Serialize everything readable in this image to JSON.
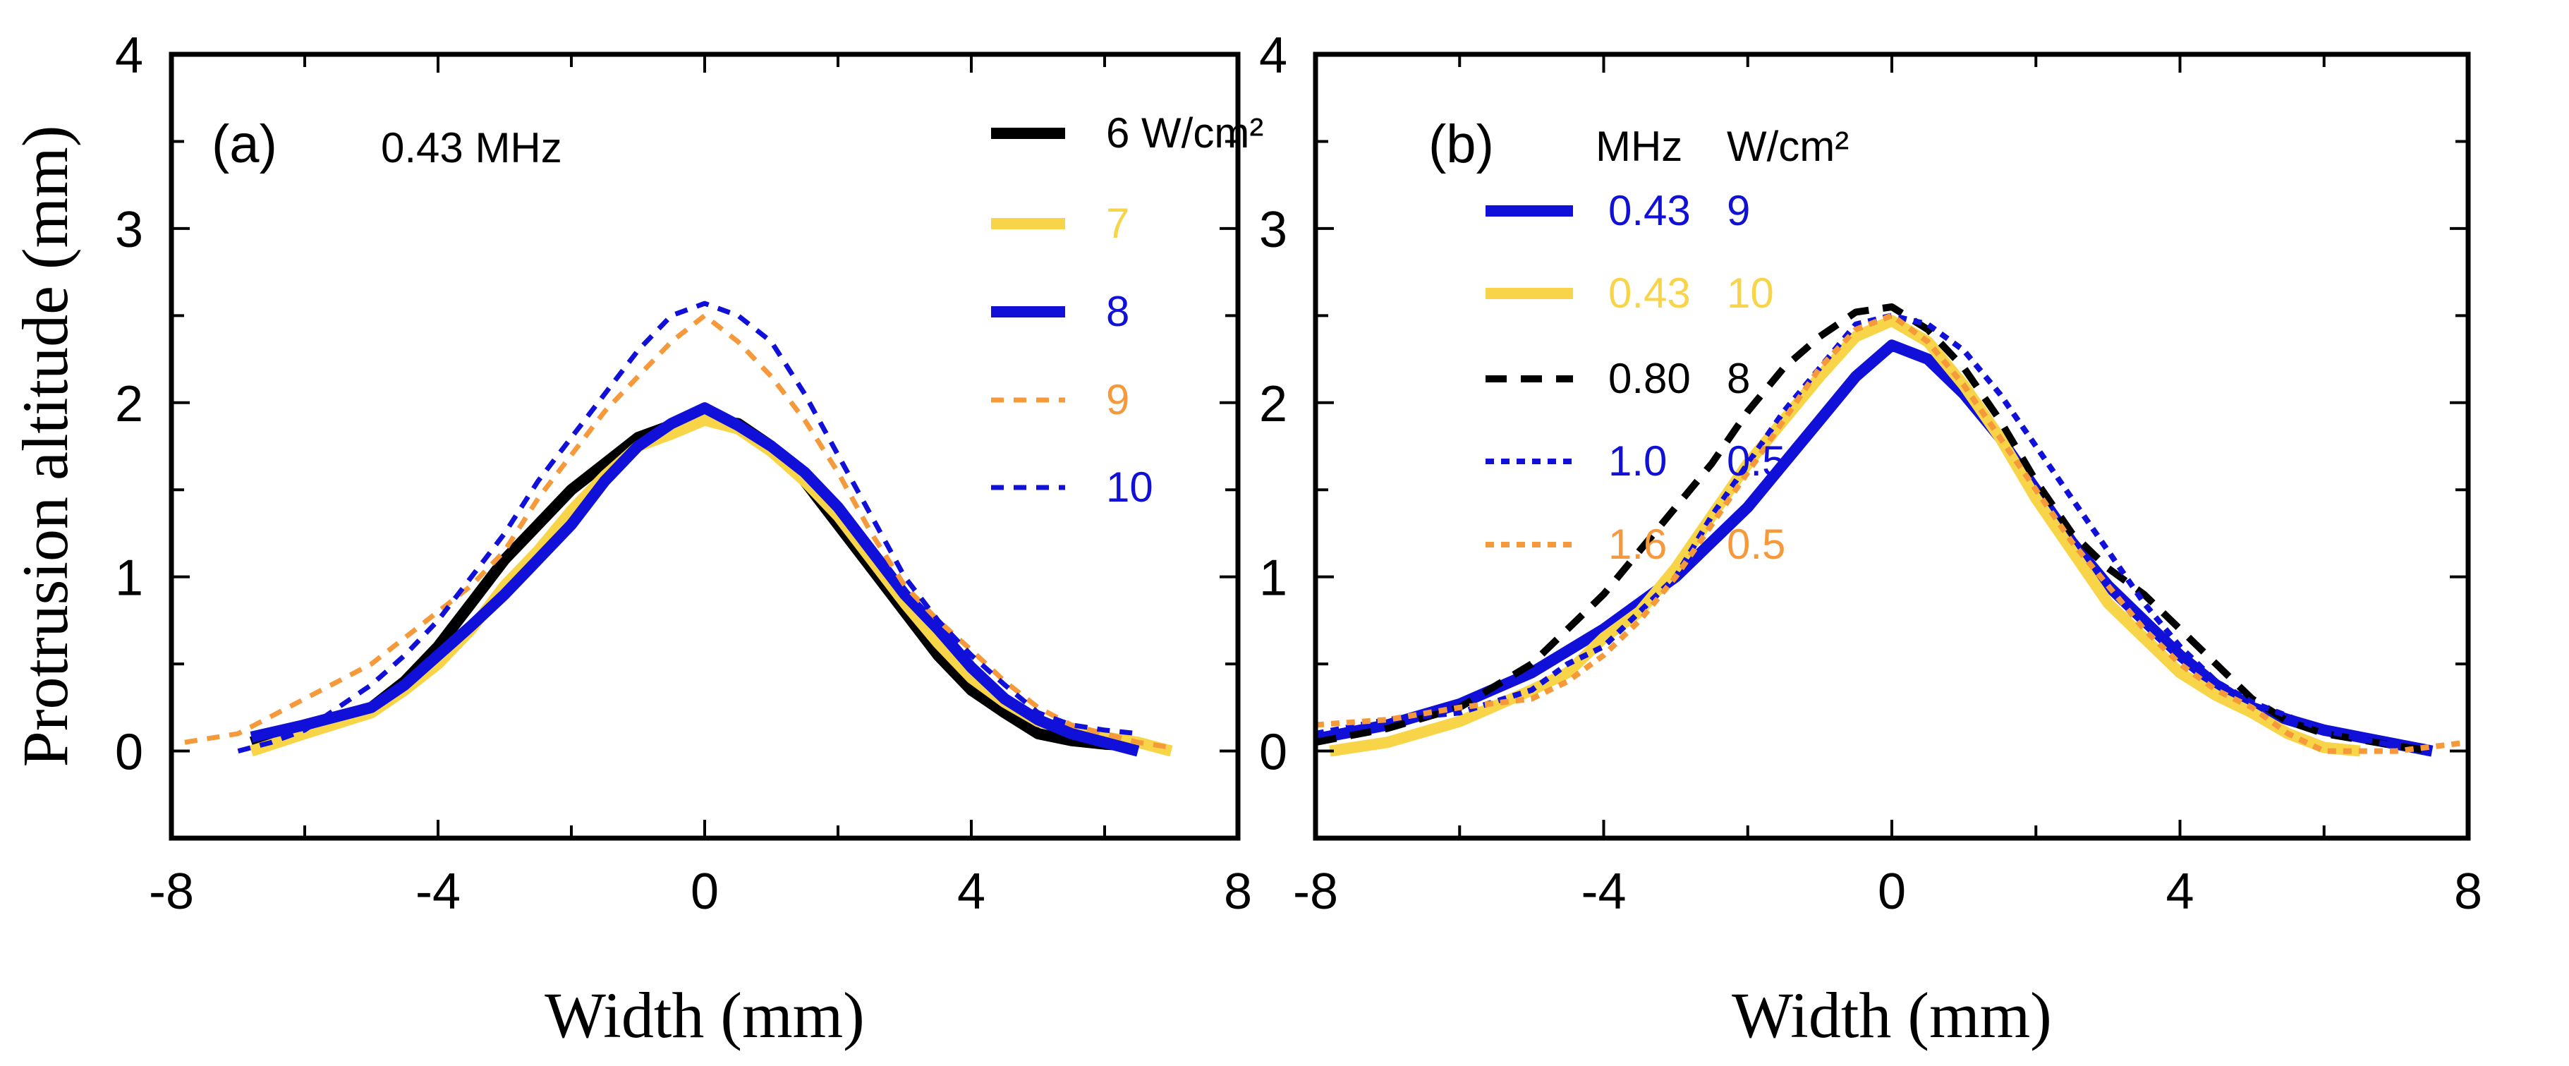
{
  "colors": {
    "black": "#000000",
    "yellow": "#f8d548",
    "blue": "#1010d8",
    "orange": "#f5993a"
  },
  "chart_data": [
    {
      "type": "line",
      "panel_label": "(a)",
      "annotation": "0.43 MHz",
      "xlabel": "Width  (mm)",
      "ylabel": "Protrusion altitude  (mm)",
      "xlim": [
        -8,
        8
      ],
      "ylim": [
        -0.5,
        4
      ],
      "xticks": [
        "-8",
        "-4",
        "0",
        "4",
        "8"
      ],
      "yticks": [
        "0",
        "1",
        "2",
        "3",
        "4"
      ],
      "grid": false,
      "legend_position": "top-right",
      "legend_header": [],
      "series": [
        {
          "name": "6 W/cm²",
          "labels": [
            "6 W/cm²"
          ],
          "color": "#000000",
          "style": "solid-thick",
          "x": [
            -6.8,
            -6,
            -5,
            -4.5,
            -4,
            -3.5,
            -3,
            -2.5,
            -2,
            -1.5,
            -1,
            -0.5,
            0,
            0.5,
            1,
            1.5,
            2,
            2.5,
            3,
            3.5,
            4,
            4.5,
            5,
            5.5,
            6,
            6.5
          ],
          "y": [
            0.05,
            0.15,
            0.25,
            0.4,
            0.6,
            0.85,
            1.1,
            1.3,
            1.5,
            1.65,
            1.8,
            1.87,
            1.9,
            1.88,
            1.75,
            1.55,
            1.3,
            1.05,
            0.8,
            0.55,
            0.35,
            0.22,
            0.1,
            0.06,
            0.04,
            0.03
          ]
        },
        {
          "name": "7",
          "labels": [
            "7"
          ],
          "color": "#f8d548",
          "style": "solid-thick",
          "x": [
            -6.8,
            -6,
            -5,
            -4.5,
            -4,
            -3.5,
            -3,
            -2.5,
            -2,
            -1.5,
            -1,
            -0.5,
            0,
            0.5,
            1,
            1.5,
            2,
            2.5,
            3,
            3.5,
            4,
            4.5,
            5,
            5.5,
            6,
            6.5,
            7
          ],
          "y": [
            0,
            0.1,
            0.22,
            0.35,
            0.5,
            0.7,
            0.95,
            1.15,
            1.38,
            1.58,
            1.75,
            1.82,
            1.9,
            1.85,
            1.72,
            1.55,
            1.35,
            1.1,
            0.85,
            0.62,
            0.42,
            0.28,
            0.17,
            0.12,
            0.08,
            0.05,
            0
          ]
        },
        {
          "name": "8",
          "labels": [
            "8"
          ],
          "color": "#1010d8",
          "style": "solid-thick",
          "x": [
            -6.8,
            -6,
            -5,
            -4.5,
            -4,
            -3.5,
            -3,
            -2.5,
            -2,
            -1.5,
            -1,
            -0.5,
            0,
            0.5,
            1,
            1.5,
            2,
            2.5,
            3,
            3.5,
            4,
            4.5,
            5,
            5.5,
            6,
            6.5
          ],
          "y": [
            0.08,
            0.15,
            0.25,
            0.38,
            0.55,
            0.72,
            0.9,
            1.1,
            1.3,
            1.55,
            1.75,
            1.88,
            1.97,
            1.87,
            1.75,
            1.6,
            1.4,
            1.15,
            0.9,
            0.7,
            0.48,
            0.3,
            0.18,
            0.1,
            0.05,
            0
          ]
        },
        {
          "name": "9",
          "labels": [
            "9"
          ],
          "color": "#f5993a",
          "style": "dashed-thin",
          "x": [
            -7.8,
            -7,
            -6.5,
            -6,
            -5.5,
            -5,
            -4.5,
            -4,
            -3.5,
            -3,
            -2.5,
            -2,
            -1.5,
            -1,
            -0.5,
            0,
            0.5,
            1,
            1.5,
            2,
            2.5,
            3,
            3.5,
            4,
            4.5,
            5,
            5.5,
            6,
            6.5,
            7
          ],
          "y": [
            0.05,
            0.1,
            0.2,
            0.3,
            0.4,
            0.5,
            0.65,
            0.8,
            0.95,
            1.15,
            1.45,
            1.7,
            1.95,
            2.15,
            2.35,
            2.5,
            2.35,
            2.15,
            1.9,
            1.6,
            1.25,
            0.95,
            0.75,
            0.58,
            0.4,
            0.25,
            0.15,
            0.1,
            0.05,
            0.02
          ]
        },
        {
          "name": "10",
          "labels": [
            "10"
          ],
          "color": "#1010d8",
          "style": "dashed-thin",
          "x": [
            -7,
            -6.5,
            -6,
            -5.5,
            -5,
            -4.5,
            -4,
            -3.5,
            -3,
            -2.5,
            -2,
            -1.5,
            -1,
            -0.5,
            0,
            0.5,
            1,
            1.5,
            2,
            2.5,
            3,
            3.5,
            4,
            4.5,
            5,
            5.5,
            6,
            6.5
          ],
          "y": [
            0,
            0.05,
            0.12,
            0.25,
            0.38,
            0.55,
            0.75,
            1,
            1.25,
            1.55,
            1.8,
            2.05,
            2.3,
            2.5,
            2.57,
            2.5,
            2.35,
            2.05,
            1.7,
            1.35,
            1,
            0.75,
            0.55,
            0.38,
            0.22,
            0.15,
            0.12,
            0.1
          ]
        }
      ]
    },
    {
      "type": "line",
      "panel_label": "(b)",
      "annotation": "",
      "xlabel": "Width  (mm)",
      "ylabel": "",
      "xlim": [
        -8,
        8
      ],
      "ylim": [
        -0.5,
        4
      ],
      "xticks": [
        "-8",
        "-4",
        "0",
        "4",
        "8"
      ],
      "yticks": [
        "0",
        "1",
        "2",
        "3",
        "4"
      ],
      "grid": false,
      "legend_position": "top-left",
      "legend_header": [
        "MHz",
        "W/cm²"
      ],
      "series": [
        {
          "labels": [
            "0.43",
            "9"
          ],
          "color": "#1010d8",
          "style": "solid-thick",
          "x": [
            -8,
            -7,
            -6,
            -5,
            -4,
            -3,
            -2.5,
            -2,
            -1.5,
            -1,
            -0.5,
            0,
            0.5,
            1,
            1.5,
            2,
            2.5,
            3,
            3.5,
            4,
            4.5,
            5,
            5.5,
            6,
            6.5,
            7,
            7.5
          ],
          "y": [
            0.07,
            0.15,
            0.27,
            0.45,
            0.7,
            1,
            1.2,
            1.4,
            1.65,
            1.9,
            2.15,
            2.33,
            2.25,
            2.05,
            1.8,
            1.5,
            1.2,
            0.95,
            0.75,
            0.55,
            0.38,
            0.25,
            0.18,
            0.12,
            0.08,
            0.04,
            0
          ]
        },
        {
          "labels": [
            "0.43",
            "10"
          ],
          "color": "#f8d548",
          "style": "solid-thick",
          "x": [
            -7.8,
            -7,
            -6,
            -5,
            -4.5,
            -4,
            -3.5,
            -3,
            -2.5,
            -2,
            -1.5,
            -1,
            -0.5,
            0,
            0.5,
            1,
            1.5,
            2,
            2.5,
            3,
            3.5,
            4,
            4.5,
            5,
            5.5,
            6,
            6.5
          ],
          "y": [
            0,
            0.05,
            0.17,
            0.35,
            0.45,
            0.65,
            0.8,
            1.05,
            1.35,
            1.65,
            1.9,
            2.15,
            2.38,
            2.47,
            2.35,
            2.1,
            1.8,
            1.45,
            1.15,
            0.85,
            0.65,
            0.45,
            0.32,
            0.22,
            0.1,
            0.02,
            0
          ]
        },
        {
          "labels": [
            "0.80",
            "8"
          ],
          "color": "#000000",
          "style": "dashed-medium",
          "x": [
            -8,
            -7,
            -6,
            -5,
            -4.5,
            -4,
            -3.5,
            -3,
            -2.5,
            -2,
            -1.5,
            -1,
            -0.5,
            0,
            0.5,
            1,
            1.5,
            2,
            2.5,
            3,
            3.5,
            4,
            4.5,
            5,
            5.5,
            6,
            7,
            7.5
          ],
          "y": [
            0.05,
            0.13,
            0.25,
            0.5,
            0.7,
            0.9,
            1.15,
            1.4,
            1.65,
            1.95,
            2.2,
            2.38,
            2.52,
            2.55,
            2.42,
            2.2,
            1.9,
            1.55,
            1.25,
            1.05,
            0.9,
            0.7,
            0.5,
            0.3,
            0.17,
            0.1,
            0.03,
            0
          ]
        },
        {
          "labels": [
            "1.0",
            "0.5"
          ],
          "color": "#1010d8",
          "style": "dotted",
          "x": [
            -8,
            -7,
            -6,
            -5,
            -4.5,
            -4,
            -3.5,
            -3,
            -2.5,
            -2,
            -1.5,
            -1,
            -0.5,
            0,
            0.5,
            1,
            1.5,
            2,
            2.5,
            3,
            3.5,
            4,
            4.5,
            5,
            5.5,
            6,
            6.5,
            7
          ],
          "y": [
            0.1,
            0.18,
            0.22,
            0.35,
            0.5,
            0.6,
            0.8,
            1,
            1.35,
            1.65,
            1.95,
            2.2,
            2.45,
            2.5,
            2.45,
            2.3,
            2.05,
            1.75,
            1.45,
            1.15,
            0.85,
            0.6,
            0.4,
            0.28,
            0.2,
            0.12,
            0.07,
            0.03
          ]
        },
        {
          "labels": [
            "1.6",
            "0.5"
          ],
          "color": "#f5993a",
          "style": "dotted",
          "x": [
            -8,
            -7,
            -6,
            -5,
            -4.5,
            -4,
            -3.5,
            -3,
            -2.5,
            -2,
            -1.5,
            -1,
            -0.5,
            0,
            0.5,
            1,
            1.5,
            2,
            2.5,
            3,
            3.5,
            4,
            4.5,
            5,
            5.5,
            6,
            7,
            8
          ],
          "y": [
            0.15,
            0.18,
            0.25,
            0.3,
            0.4,
            0.55,
            0.75,
            1,
            1.3,
            1.6,
            1.9,
            2.2,
            2.42,
            2.5,
            2.35,
            2.1,
            1.8,
            1.5,
            1.2,
            0.95,
            0.7,
            0.5,
            0.35,
            0.25,
            0.1,
            0,
            0,
            0.05
          ]
        }
      ]
    }
  ]
}
